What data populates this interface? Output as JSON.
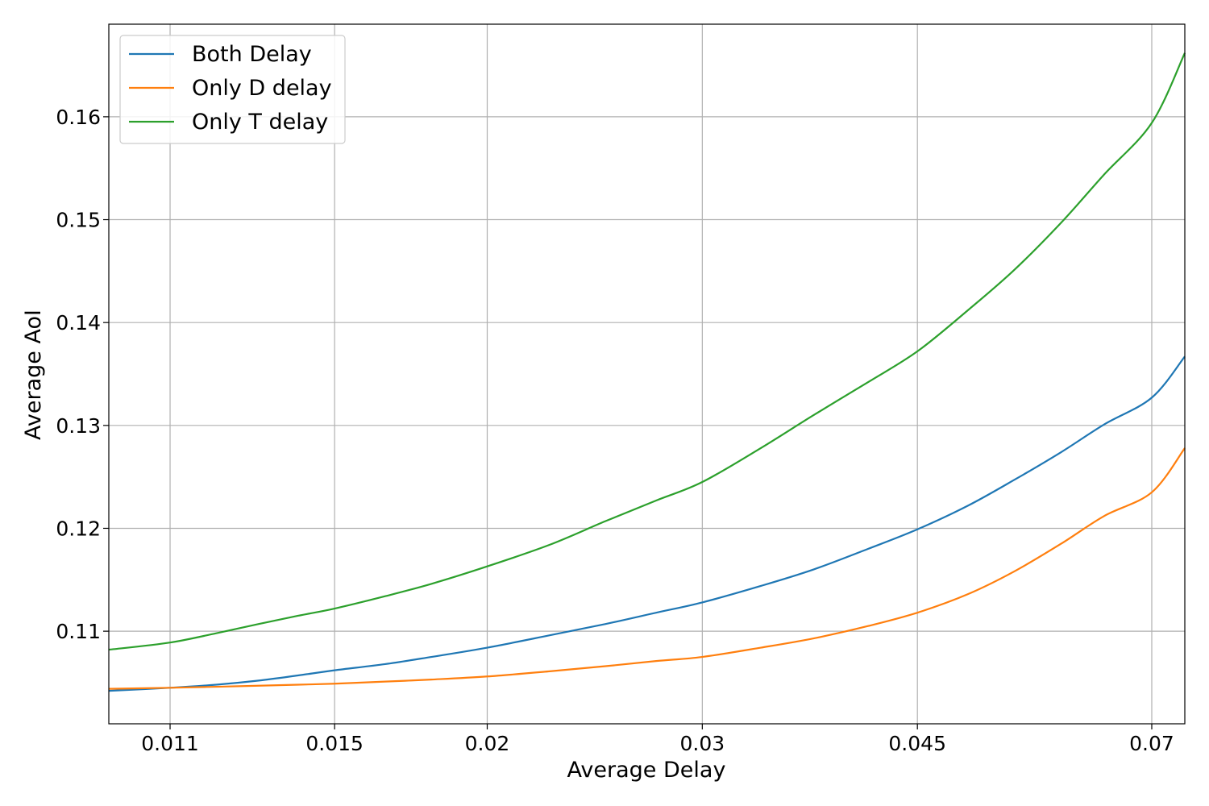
{
  "chart_data": {
    "type": "line",
    "xlabel": "Average Delay",
    "ylabel": "Average AoI",
    "xscale": "log",
    "xlim": [
      0.0098,
      0.0745
    ],
    "ylim": [
      0.101,
      0.169
    ],
    "xticks": [
      0.011,
      0.015,
      0.02,
      0.03,
      0.045,
      0.07
    ],
    "xtick_labels": [
      "0.011",
      "0.015",
      "0.02",
      "0.03",
      "0.045",
      "0.07"
    ],
    "yticks": [
      0.11,
      0.12,
      0.13,
      0.14,
      0.15,
      0.16
    ],
    "ytick_labels": [
      "0.11",
      "0.12",
      "0.13",
      "0.14",
      "0.15",
      "0.16"
    ],
    "grid": true,
    "legend_position": "top-left",
    "x": [
      0.0098,
      0.011,
      0.012,
      0.013,
      0.014,
      0.015,
      0.0165,
      0.018,
      0.02,
      0.0225,
      0.025,
      0.0275,
      0.03,
      0.0335,
      0.037,
      0.041,
      0.045,
      0.0495,
      0.054,
      0.059,
      0.064,
      0.07,
      0.0745
    ],
    "series": [
      {
        "name": "Both Delay",
        "color": "#1f77b4",
        "values": [
          0.1042,
          0.1045,
          0.1048,
          0.1052,
          0.1057,
          0.1062,
          0.1068,
          0.1075,
          0.1084,
          0.1096,
          0.1107,
          0.1118,
          0.1128,
          0.1144,
          0.116,
          0.118,
          0.1199,
          0.1222,
          0.1247,
          0.1274,
          0.1301,
          0.1327,
          0.1367
        ]
      },
      {
        "name": "Only D delay",
        "color": "#ff7f0e",
        "values": [
          0.1044,
          0.1045,
          0.1046,
          0.1047,
          0.1048,
          0.1049,
          0.1051,
          0.1053,
          0.1056,
          0.1061,
          0.1066,
          0.1071,
          0.1075,
          0.1084,
          0.1093,
          0.1105,
          0.1118,
          0.1136,
          0.1158,
          0.1185,
          0.1212,
          0.1235,
          0.1278
        ]
      },
      {
        "name": "Only T delay",
        "color": "#2ca02c",
        "values": [
          0.1082,
          0.1089,
          0.1098,
          0.1107,
          0.1115,
          0.1122,
          0.1134,
          0.1146,
          0.1163,
          0.1184,
          0.1207,
          0.1227,
          0.1245,
          0.1278,
          0.131,
          0.1342,
          0.1372,
          0.1412,
          0.1451,
          0.1497,
          0.1544,
          0.1594,
          0.1662
        ]
      }
    ]
  }
}
